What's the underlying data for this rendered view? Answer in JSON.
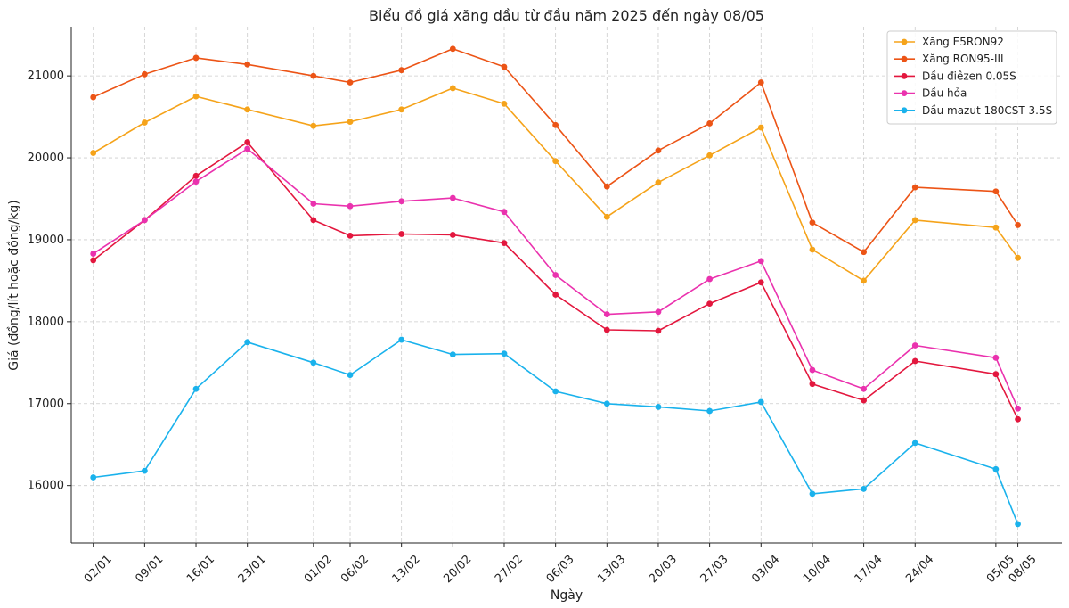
{
  "chart_data": {
    "type": "line",
    "title": "Biểu đồ giá xăng dầu từ đầu năm 2025 đến ngày 08/05",
    "xlabel": "Ngày",
    "ylabel": "Giá (đồng/lít hoặc đồng/kg)",
    "ylim": [
      15300,
      21600
    ],
    "yticks": [
      16000,
      17000,
      18000,
      19000,
      20000,
      21000
    ],
    "x_days": [
      1,
      8,
      15,
      22,
      31,
      36,
      43,
      50,
      57,
      64,
      71,
      78,
      85,
      92,
      99,
      106,
      113,
      124,
      127
    ],
    "xlim": [
      -2,
      133
    ],
    "categories": [
      "02/01",
      "09/01",
      "16/01",
      "23/01",
      "01/02",
      "06/02",
      "13/02",
      "20/02",
      "27/02",
      "06/03",
      "13/03",
      "20/03",
      "27/03",
      "03/04",
      "10/04",
      "17/04",
      "24/04",
      "05/05",
      "08/05"
    ],
    "grid": true,
    "legend_position": "top-right",
    "series": [
      {
        "name": "Xăng E5RON92",
        "color": "#f5a31a",
        "values": [
          20060,
          20430,
          20750,
          20590,
          20390,
          20440,
          20590,
          20850,
          20660,
          19960,
          19280,
          19700,
          20030,
          20370,
          18880,
          18500,
          19240,
          19150,
          18780
        ]
      },
      {
        "name": "Xăng RON95-III",
        "color": "#ec5416",
        "values": [
          20740,
          21020,
          21220,
          21140,
          21000,
          20920,
          21070,
          21330,
          21110,
          20400,
          19650,
          20090,
          20420,
          20920,
          19210,
          18850,
          19640,
          19590,
          19180
        ]
      },
      {
        "name": "Dầu điêzen 0.05S",
        "color": "#e3173e",
        "values": [
          18750,
          19240,
          19780,
          20190,
          19240,
          19050,
          19070,
          19060,
          18960,
          18330,
          17900,
          17890,
          18220,
          18480,
          17240,
          17040,
          17520,
          17360,
          16810
        ]
      },
      {
        "name": "Dầu hỏa",
        "color": "#ea32ae",
        "values": [
          18830,
          19240,
          19710,
          20110,
          19440,
          19410,
          19470,
          19510,
          19340,
          18570,
          18090,
          18120,
          18520,
          18740,
          17410,
          17180,
          17710,
          17560,
          16940
        ]
      },
      {
        "name": "Dầu mazut 180CST 3.5S",
        "color": "#1ab2ec",
        "values": [
          16100,
          16180,
          17180,
          17750,
          17500,
          17350,
          17780,
          17600,
          17610,
          17150,
          17000,
          16960,
          16910,
          17020,
          15900,
          15960,
          16520,
          16200,
          15530
        ]
      }
    ]
  }
}
